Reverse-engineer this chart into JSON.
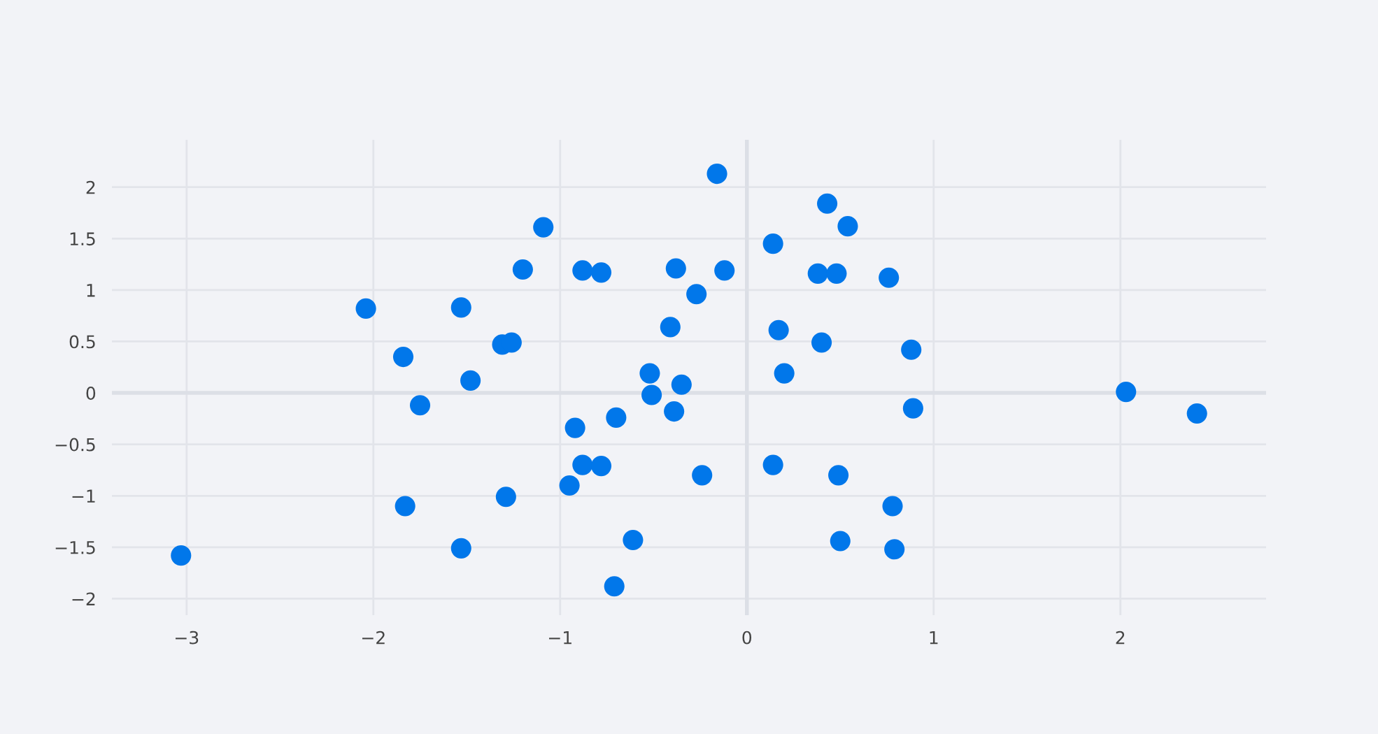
{
  "chart_data": {
    "type": "scatter",
    "color": "#0177ea",
    "marker": "circle",
    "grid": true,
    "legend": false,
    "xlim": [
      -3.4,
      2.78
    ],
    "ylim": [
      -2.16,
      2.46
    ],
    "xticks": [
      {
        "value": -3,
        "label": "−3"
      },
      {
        "value": -2,
        "label": "−2"
      },
      {
        "value": -1,
        "label": "−1"
      },
      0,
      1,
      2
    ],
    "yticks": [
      {
        "value": -2,
        "label": "−2"
      },
      {
        "value": -1.5,
        "label": "−1.5"
      },
      {
        "value": -1,
        "label": "−1"
      },
      {
        "value": -0.5,
        "label": "−0.5"
      },
      0,
      0.5,
      1,
      1.5,
      2
    ],
    "x": [
      -3.03,
      -2.04,
      -1.84,
      -1.75,
      -1.83,
      -1.53,
      -1.48,
      -1.53,
      -1.31,
      -1.26,
      -1.29,
      -1.2,
      -1.09,
      -0.88,
      -0.78,
      -0.92,
      -0.88,
      -0.78,
      -0.95,
      -0.7,
      -0.71,
      -0.61,
      -0.52,
      -0.51,
      -0.41,
      -0.38,
      -0.39,
      -0.35,
      -0.27,
      -0.24,
      -0.16,
      -0.12,
      0.14,
      0.17,
      0.2,
      0.14,
      0.38,
      0.48,
      0.43,
      0.54,
      0.4,
      0.49,
      0.5,
      0.76,
      0.88,
      0.89,
      0.78,
      0.79,
      2.03,
      2.41
    ],
    "values": [
      -1.58,
      0.82,
      0.35,
      -0.12,
      -1.1,
      0.83,
      0.12,
      -1.51,
      0.47,
      0.49,
      -1.01,
      1.2,
      1.61,
      1.19,
      1.17,
      -0.34,
      -0.7,
      -0.71,
      -0.9,
      -0.24,
      -1.88,
      -1.43,
      0.19,
      -0.02,
      0.64,
      1.21,
      -0.18,
      0.08,
      0.96,
      -0.8,
      2.13,
      1.19,
      1.45,
      0.61,
      0.19,
      -0.7,
      1.16,
      1.16,
      1.84,
      1.62,
      0.49,
      -0.8,
      -1.44,
      1.12,
      0.42,
      -0.15,
      -1.1,
      -1.52,
      0.01,
      -0.2
    ]
  }
}
